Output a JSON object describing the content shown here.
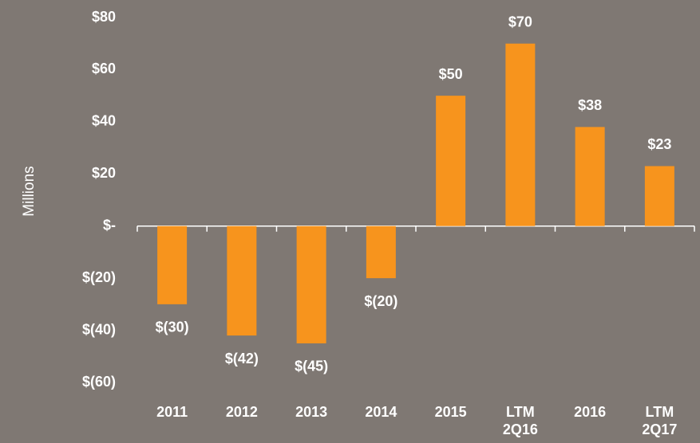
{
  "chart_data": {
    "type": "bar",
    "y_axis_label": "Millions",
    "categories": [
      "2011",
      "2012",
      "2013",
      "2014",
      "2015",
      "LTM 2Q16",
      "2016",
      "LTM 2Q17"
    ],
    "values": [
      -30,
      -42,
      -45,
      -20,
      50,
      70,
      38,
      23
    ],
    "value_labels": [
      "$(30)",
      "$(42)",
      "$(45)",
      "$(20)",
      "$50",
      "$70",
      "$38",
      "$23"
    ],
    "color": "#f7941d",
    "ylim": [
      -60,
      80
    ],
    "yticks": [
      {
        "value": -60,
        "label": "$(60)"
      },
      {
        "value": -40,
        "label": "$(40)"
      },
      {
        "value": -20,
        "label": "$(20)"
      },
      {
        "value": 0,
        "label": "$-"
      },
      {
        "value": 20,
        "label": "$20"
      },
      {
        "value": 40,
        "label": "$40"
      },
      {
        "value": 60,
        "label": "$60"
      },
      {
        "value": 80,
        "label": "$80"
      }
    ],
    "grid": false
  }
}
